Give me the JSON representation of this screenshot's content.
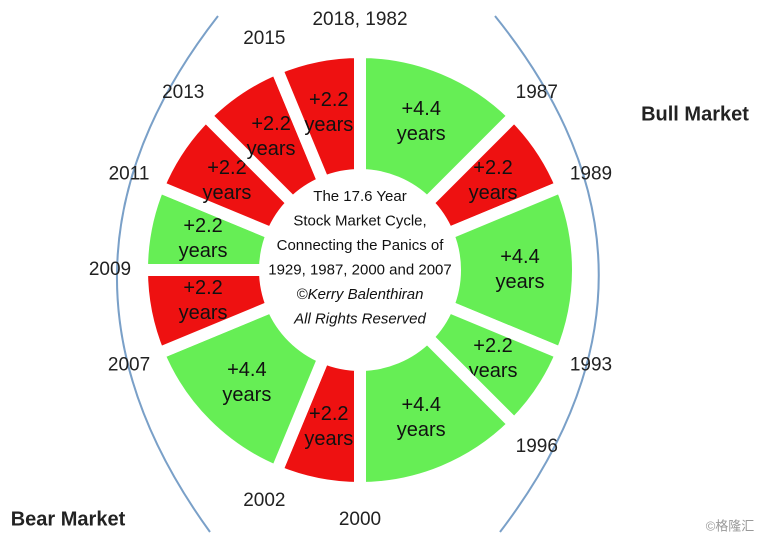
{
  "chart_data": {
    "type": "donut",
    "categories": [
      "2018, 1982",
      "1987",
      "1989",
      "1993",
      "1996",
      "2000",
      "2002",
      "2007",
      "2009",
      "2011",
      "2013",
      "2015"
    ],
    "values": [
      4.4,
      2.2,
      4.4,
      2.2,
      4.4,
      2.2,
      4.4,
      2.2,
      2.2,
      2.2,
      2.2,
      2.2
    ],
    "value_labels": [
      "+4.4 years",
      "+2.2 years",
      "+4.4 years",
      "+2.2 years",
      "+4.4 years",
      "+2.2 years",
      "+4.4 years",
      "+2.2 years",
      "+2.2 years",
      "+2.2 years",
      "+2.2 years",
      "+2.2 years"
    ],
    "colors": [
      "#66ee55",
      "#ee1111",
      "#66ee55",
      "#66ee55",
      "#66ee55",
      "#ee1111",
      "#66ee55",
      "#ee1111",
      "#66ee55",
      "#ee1111",
      "#ee1111",
      "#ee1111"
    ],
    "center_text": [
      "The 17.6 Year",
      "Stock Market Cycle,",
      "Connecting the Panics of",
      "1929, 1987, 2000 and 2007",
      "©Kerry Balenthiran",
      "All Rights Reserved"
    ],
    "annotations": [
      "Bull Market",
      "Bear Market"
    ],
    "watermark": "©格隆汇"
  }
}
